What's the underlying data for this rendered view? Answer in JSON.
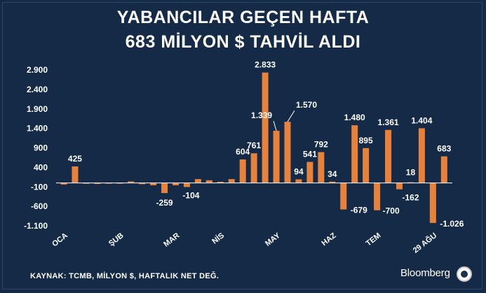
{
  "header": {
    "title_line1": "YABANCILAR GEÇEN HAFTA",
    "title_line2": "683 MİLYON $ TAHVİL ALDI"
  },
  "footer": {
    "source": "KAYNAK: TCMB, MİLYON $, HAFTALIK NET DEĞ.",
    "brand": "Bloomberg",
    "logo_icon": "seal-icon"
  },
  "colors": {
    "background": "#152a47",
    "bar": "#e8813a",
    "axis": "#ffffff",
    "text": "#ffffff"
  },
  "chart_data": {
    "type": "bar",
    "title": "YABANCILAR GEÇEN HAFTA 683 MİLYON $ TAHVİL ALDI",
    "xlabel": "",
    "ylabel": "",
    "ylim": [
      -1100,
      2900
    ],
    "yticks": [
      2900,
      2400,
      1900,
      1400,
      900,
      400,
      -100,
      -600,
      -1100
    ],
    "ytick_labels": [
      "2.900",
      "2.400",
      "1.900",
      "1.400",
      "900",
      "400",
      "-100",
      "-600",
      "-1.100"
    ],
    "x_tick_labels": [
      {
        "label": "OCA",
        "index": 0
      },
      {
        "label": "ŞUB",
        "index": 5
      },
      {
        "label": "MAR",
        "index": 10
      },
      {
        "label": "NİS",
        "index": 14
      },
      {
        "label": "MAY",
        "index": 19
      },
      {
        "label": "HAZ",
        "index": 24
      },
      {
        "label": "TEM",
        "index": 28
      },
      {
        "label": "29 AĞU",
        "index": 33
      }
    ],
    "values": [
      -40,
      425,
      -20,
      -25,
      0,
      0,
      40,
      -30,
      -60,
      -259,
      -60,
      -104,
      100,
      70,
      30,
      100,
      604,
      761,
      2833,
      1339,
      1570,
      94,
      541,
      792,
      34,
      -679,
      1480,
      895,
      -700,
      1361,
      -162,
      18,
      1404,
      -1026,
      683
    ],
    "data_labels": [
      {
        "index": 1,
        "text": "425"
      },
      {
        "index": 9,
        "text": "-259"
      },
      {
        "index": 11,
        "text": "-104"
      },
      {
        "index": 16,
        "text": "604"
      },
      {
        "index": 17,
        "text": "761"
      },
      {
        "index": 18,
        "text": "2.833"
      },
      {
        "index": 19,
        "text": "1.339"
      },
      {
        "index": 20,
        "text": "1.570"
      },
      {
        "index": 21,
        "text": "94"
      },
      {
        "index": 22,
        "text": "541"
      },
      {
        "index": 23,
        "text": "792"
      },
      {
        "index": 24,
        "text": "34"
      },
      {
        "index": 25,
        "text": "-679"
      },
      {
        "index": 26,
        "text": "1.480"
      },
      {
        "index": 27,
        "text": "895"
      },
      {
        "index": 28,
        "text": "-700"
      },
      {
        "index": 29,
        "text": "1.361"
      },
      {
        "index": 30,
        "text": "-162"
      },
      {
        "index": 31,
        "text": "18"
      },
      {
        "index": 32,
        "text": "1.404"
      },
      {
        "index": 33,
        "text": "-1.026"
      },
      {
        "index": 34,
        "text": "683"
      }
    ],
    "grid": false,
    "legend": "none"
  }
}
